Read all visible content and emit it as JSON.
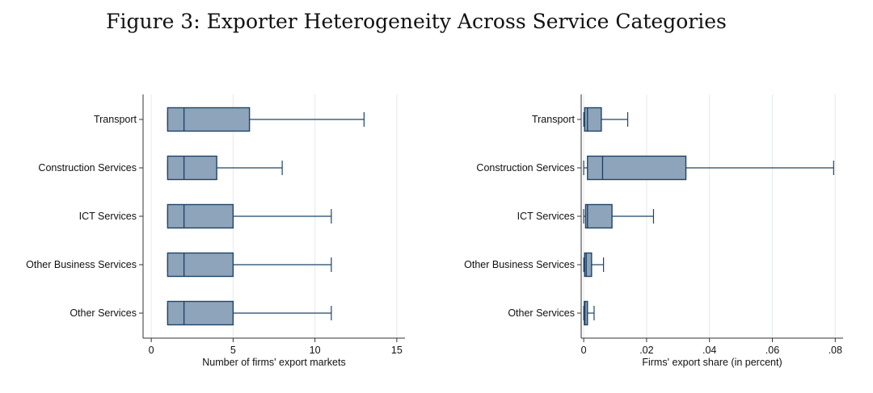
{
  "title": "Figure 3: Exporter Heterogeneity Across Service Categories",
  "colors": {
    "box_fill": "#8EA4BA",
    "box_stroke": "#1F4468",
    "grid": "#E6EAEE",
    "axis": "#333333"
  },
  "chart_data": [
    {
      "type": "box",
      "orientation": "horizontal",
      "title": "",
      "xlabel": "Number of firms' export markets",
      "ylabel": "",
      "xlim": [
        -0.5,
        15.5
      ],
      "xticks": [
        0,
        5,
        10,
        15
      ],
      "xtick_labels": [
        "0",
        "5",
        "10",
        "15"
      ],
      "grid": true,
      "categories": [
        "Transport",
        "Construction Services",
        "ICT Services",
        "Other Business Services",
        "Other Services"
      ],
      "boxes": [
        {
          "category": "Transport",
          "whisker_low": 1,
          "q1": 1,
          "median": 2,
          "q3": 6,
          "whisker_high": 13
        },
        {
          "category": "Construction Services",
          "whisker_low": 1,
          "q1": 1,
          "median": 2,
          "q3": 4,
          "whisker_high": 8
        },
        {
          "category": "ICT Services",
          "whisker_low": 1,
          "q1": 1,
          "median": 2,
          "q3": 5,
          "whisker_high": 11
        },
        {
          "category": "Other Business Services",
          "whisker_low": 1,
          "q1": 1,
          "median": 2,
          "q3": 5,
          "whisker_high": 11
        },
        {
          "category": "Other Services",
          "whisker_low": 1,
          "q1": 1,
          "median": 2,
          "q3": 5,
          "whisker_high": 11
        }
      ]
    },
    {
      "type": "box",
      "orientation": "horizontal",
      "title": "",
      "xlabel": "Firms' export share (in percent)",
      "ylabel": "",
      "xlim": [
        -0.0008,
        0.0825
      ],
      "xticks": [
        0,
        0.02,
        0.04,
        0.06,
        0.08
      ],
      "xtick_labels": [
        "0",
        ".02",
        ".04",
        ".06",
        ".08"
      ],
      "grid": true,
      "categories": [
        "Transport",
        "Construction Services",
        "ICT Services",
        "Other Business Services",
        "Other Services"
      ],
      "boxes": [
        {
          "category": "Transport",
          "whisker_low": 0,
          "q1": 0.0003,
          "median": 0.0012,
          "q3": 0.0056,
          "whisker_high": 0.014
        },
        {
          "category": "Construction Services",
          "whisker_low": 0,
          "q1": 0.0012,
          "median": 0.006,
          "q3": 0.0325,
          "whisker_high": 0.0795
        },
        {
          "category": "ICT Services",
          "whisker_low": 0,
          "q1": 0.0006,
          "median": 0.0012,
          "q3": 0.009,
          "whisker_high": 0.0222
        },
        {
          "category": "Other Business Services",
          "whisker_low": 0,
          "q1": 0.0003,
          "median": 0.0008,
          "q3": 0.0025,
          "whisker_high": 0.0063
        },
        {
          "category": "Other Services",
          "whisker_low": 0,
          "q1": 0.0002,
          "median": 0.0004,
          "q3": 0.0012,
          "whisker_high": 0.0033
        }
      ]
    }
  ]
}
